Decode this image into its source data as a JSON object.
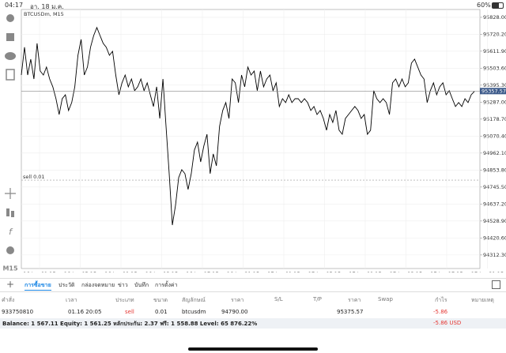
{
  "status": {
    "time": "04:17",
    "date": "อา. 18 ม.ค.",
    "battery": "60%"
  },
  "toolbar": {
    "timeframe": "M15"
  },
  "chart_data": {
    "type": "line",
    "title": "BTCUSDm, M15",
    "x_labels": [
      "16 Jan 01:15",
      "16 Jan 05:15",
      "16 Jan 09:15",
      "16 Jan 13:15",
      "16 Jan 17:15",
      "16 Jan 21:15",
      "17 Jan 01:15",
      "17 Jan 05:15",
      "17 Jan 09:15",
      "17 Jan 13:15",
      "17 Jan 17:15",
      "17 Jan 21:15"
    ],
    "series": [
      {
        "name": "BTCUSDm",
        "color": "#000000",
        "values": [
          95460,
          95637,
          95460,
          95561,
          95435,
          95662,
          95485,
          95460,
          95511,
          95435,
          95385,
          95309,
          95208,
          95309,
          95334,
          95234,
          95284,
          95385,
          95586,
          95687,
          95460,
          95511,
          95637,
          95712,
          95763,
          95712,
          95662,
          95637,
          95586,
          95611,
          95460,
          95334,
          95410,
          95460,
          95385,
          95435,
          95360,
          95385,
          95435,
          95360,
          95410,
          95334,
          95259,
          95385,
          95183,
          95435,
          95133,
          94831,
          94503,
          94629,
          94806,
          94856,
          94831,
          94730,
          94831,
          94982,
          95032,
          94906,
          95007,
          95082,
          94831,
          94957,
          94881,
          95133,
          95234,
          95284,
          95183,
          95435,
          95410,
          95284,
          95460,
          95385,
          95511,
          95460,
          95485,
          95360,
          95485,
          95385,
          95435,
          95460,
          95360,
          95410,
          95259,
          95309,
          95284,
          95334,
          95284,
          95309,
          95309,
          95284,
          95309,
          95284,
          95234,
          95259,
          95208,
          95234,
          95183,
          95108,
          95208,
          95158,
          95234,
          95108,
          95082,
          95183,
          95208,
          95234,
          95259,
          95234,
          95183,
          95208,
          95082,
          95108,
          95360,
          95309,
          95284,
          95309,
          95284,
          95208,
          95410,
          95435,
          95385,
          95435,
          95385,
          95410,
          95536,
          95561,
          95511,
          95460,
          95435,
          95284,
          95360,
          95410,
          95334,
          95385,
          95410,
          95334,
          95360,
          95309,
          95259,
          95284,
          95259,
          95309,
          95284,
          95334,
          95355
        ]
      }
    ],
    "ylim": [
      94226,
      95878
    ],
    "yticks": [
      {
        "value": 95828,
        "label": "95828.00"
      },
      {
        "value": 95720.2,
        "label": "95720.20"
      },
      {
        "value": 95611.9,
        "label": "95611.90"
      },
      {
        "value": 95503.6,
        "label": "95503.60"
      },
      {
        "value": 95395.3,
        "label": "95395.30"
      },
      {
        "value": 95287,
        "label": "95287.00"
      },
      {
        "value": 95178.7,
        "label": "95178.70"
      },
      {
        "value": 95070.4,
        "label": "95070.40"
      },
      {
        "value": 94962.1,
        "label": "94962.10"
      },
      {
        "value": 94853.8,
        "label": "94853.80"
      },
      {
        "value": 94745.5,
        "label": "94745.50"
      },
      {
        "value": 94637.2,
        "label": "94637.20"
      },
      {
        "value": 94528.9,
        "label": "94528.90"
      },
      {
        "value": 94420.6,
        "label": "94420.60"
      },
      {
        "value": 94312.3,
        "label": "94312.30"
      }
    ],
    "price_line": {
      "value": 95357.57,
      "label": "95357.57"
    },
    "order_line": {
      "value": 94790,
      "label": "sell 0.01"
    },
    "grid": true
  },
  "tabs": [
    "การซื้อขาย",
    "ประวัติ",
    "กล่องจดหมาย",
    "ข่าว",
    "บันทึก",
    "การตั้งค่า"
  ],
  "table": {
    "headers": [
      "คำสั่ง",
      "เวลา",
      "ประเภท",
      "ขนาด",
      "สัญลักษณ์",
      "ราคา",
      "S/L",
      "T/P",
      "ราคา",
      "Swap",
      "กำไร",
      "หมายเหตุ"
    ],
    "row": [
      "933750810",
      "01.16 20:05",
      "sell",
      "0.01",
      "btcusdm",
      "94790.00",
      "95375.57",
      "-5.86"
    ]
  },
  "footer": {
    "balance": "Balance: 1 567.11 Equity: 1 561.25 หลักประกัน: 2.37 ฟรี: 1 558.88 Level: 65 876.22%",
    "total": "-5.86 USD"
  }
}
